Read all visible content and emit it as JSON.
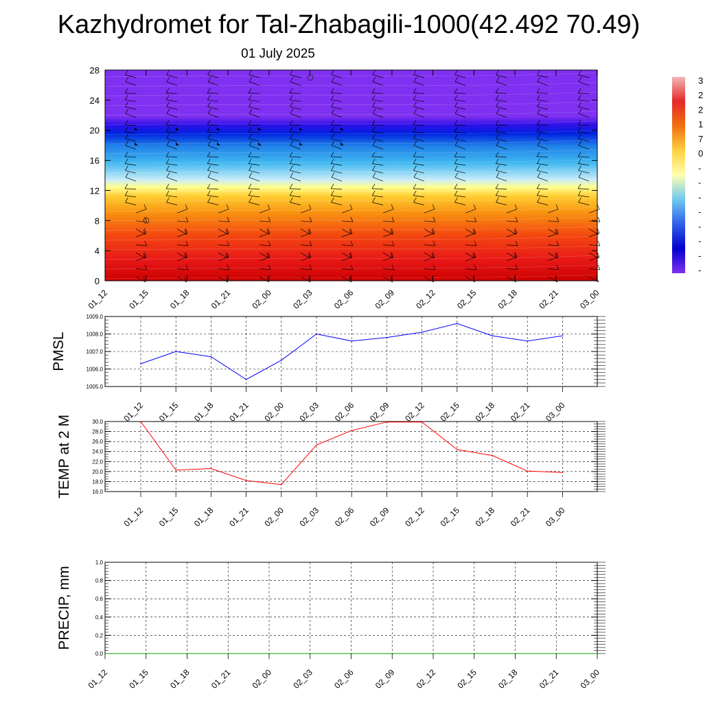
{
  "title": "Kazhydromet for Tal-Zhabagili-1000(42.492 70.49)",
  "subtitle": "01 July 2025",
  "time_labels": [
    "01_12",
    "01_15",
    "01_18",
    "01_21",
    "02_00",
    "02_03",
    "02_06",
    "02_09",
    "02_12",
    "02_15",
    "02_18",
    "02_21",
    "03_00"
  ],
  "colorbar": {
    "labels": [
      "3",
      "2",
      "2",
      "1",
      "7",
      "0",
      "-",
      "-",
      "-",
      "-",
      "-",
      "-",
      "-",
      "-"
    ],
    "colors": [
      "#f2b6b6",
      "#e62828",
      "#f07010",
      "#ffd040",
      "#ffffb0",
      "#70c8f0",
      "#3060e8",
      "#0000d0",
      "#8030f0"
    ]
  },
  "chart_data": [
    {
      "type": "heatmap",
      "name": "vertical-profile",
      "title": "",
      "xlabel": "",
      "ylabel": "",
      "x": [
        "01_12",
        "01_15",
        "01_18",
        "01_21",
        "02_00",
        "02_03",
        "02_06",
        "02_09",
        "02_12",
        "02_15",
        "02_18",
        "02_21",
        "03_00"
      ],
      "yticks": [
        0,
        4,
        8,
        12,
        16,
        20,
        24,
        28
      ],
      "ylim": [
        0,
        28
      ],
      "wind_barbs": true,
      "grid": false
    },
    {
      "type": "line",
      "name": "pmsl",
      "ylabel": "PMSL",
      "x": [
        "01_12",
        "01_15",
        "01_18",
        "01_21",
        "02_00",
        "02_03",
        "02_06",
        "02_09",
        "02_12",
        "02_15",
        "02_18",
        "02_21",
        "03_00"
      ],
      "values": [
        1006.3,
        1007.0,
        1006.7,
        1005.4,
        1006.5,
        1008.0,
        1007.6,
        1007.8,
        1008.1,
        1008.6,
        1007.9,
        1007.6,
        1007.9
      ],
      "ylim": [
        1005.0,
        1009.0
      ],
      "yticks": [
        "1005.0",
        "1006.0",
        "1007.0",
        "1008.0",
        "1009.0"
      ],
      "color": "#0000ff",
      "grid": true
    },
    {
      "type": "line",
      "name": "temp-2m",
      "ylabel": "TEMP at 2 M",
      "x": [
        "01_12",
        "01_15",
        "01_18",
        "01_21",
        "02_00",
        "02_03",
        "02_06",
        "02_09",
        "02_12",
        "02_15",
        "02_18",
        "02_21",
        "03_00"
      ],
      "values": [
        30.0,
        20.3,
        20.6,
        18.2,
        17.4,
        25.3,
        28.2,
        29.9,
        29.9,
        24.4,
        23.2,
        20.1,
        19.8
      ],
      "ylim": [
        16.0,
        30.0
      ],
      "yticks": [
        "16.0",
        "18.0",
        "20.0",
        "22.0",
        "24.0",
        "26.0",
        "28.0",
        "30.0"
      ],
      "color": "#ff0000",
      "grid": true
    },
    {
      "type": "line",
      "name": "precip",
      "ylabel": "PRECIP, mm",
      "x": [
        "01_12",
        "01_15",
        "01_18",
        "01_21",
        "02_00",
        "02_03",
        "02_06",
        "02_09",
        "02_12",
        "02_15",
        "02_18",
        "02_21",
        "03_00"
      ],
      "values": [
        0,
        0,
        0,
        0,
        0,
        0,
        0,
        0,
        0,
        0,
        0,
        0,
        0
      ],
      "ylim": [
        0.0,
        1.0
      ],
      "yticks": [
        "0.0",
        "0.2",
        "0.4",
        "0.6",
        "0.8",
        "1.0"
      ],
      "color": "#00a000",
      "grid": true
    }
  ]
}
